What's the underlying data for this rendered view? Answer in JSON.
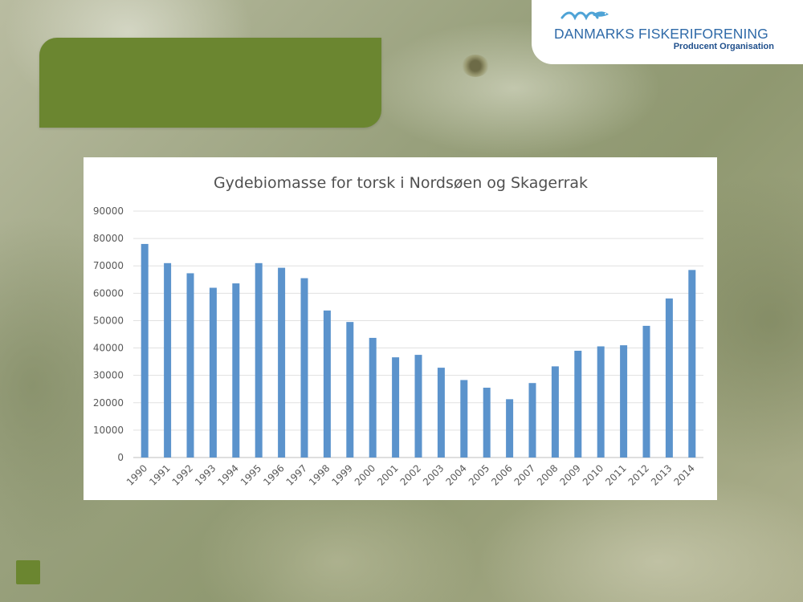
{
  "logo": {
    "name": "DANMARKS FISKERIFORENING",
    "subtitle": "Producent Organisation",
    "icon": "fish-waves-logo"
  },
  "colors": {
    "accent_green": "#6b8630",
    "bar_blue": "#5b93cc",
    "logo_blue": "#2f6aa8"
  },
  "chart_data": {
    "type": "bar",
    "title": "Gydebiomasse for torsk i Nordsøen og Skagerrak",
    "xlabel": "",
    "ylabel": "",
    "categories": [
      "1990",
      "1991",
      "1992",
      "1993",
      "1994",
      "1995",
      "1996",
      "1997",
      "1998",
      "1999",
      "2000",
      "2001",
      "2002",
      "2003",
      "2004",
      "2005",
      "2006",
      "2007",
      "2008",
      "2009",
      "2010",
      "2011",
      "2012",
      "2013",
      "2014"
    ],
    "values": [
      78000,
      71000,
      67300,
      62000,
      63600,
      71000,
      69300,
      65500,
      53700,
      49500,
      43700,
      36600,
      37500,
      32800,
      28300,
      25500,
      21300,
      27200,
      33300,
      39000,
      40600,
      41000,
      48100,
      58100,
      68500
    ],
    "ylim": [
      0,
      90000
    ],
    "yticks": [
      0,
      10000,
      20000,
      30000,
      40000,
      50000,
      60000,
      70000,
      80000,
      90000
    ],
    "ytick_labels": [
      "0",
      "10000",
      "20000",
      "30000",
      "40000",
      "50000",
      "60000",
      "70000",
      "80000",
      "90000"
    ],
    "grid": true,
    "legend": "none"
  }
}
